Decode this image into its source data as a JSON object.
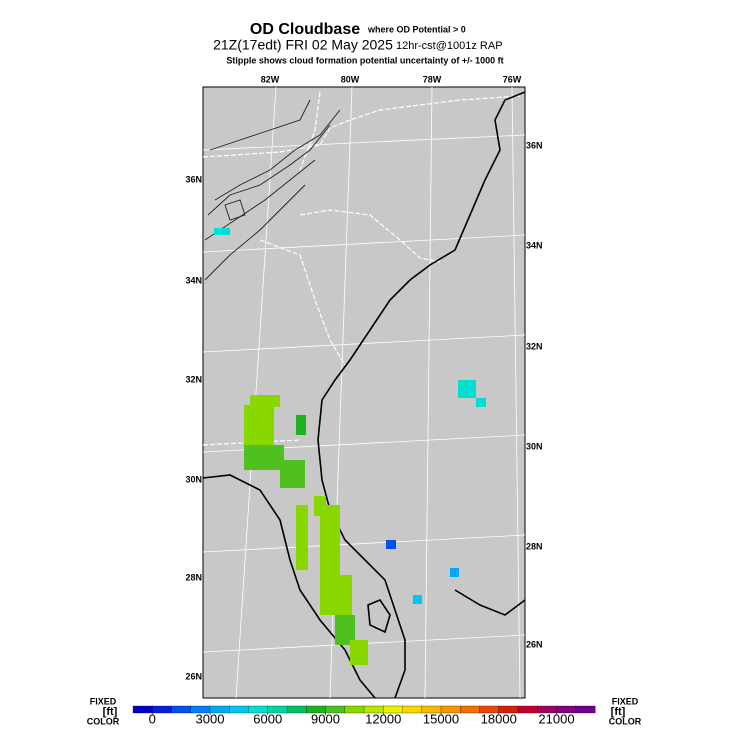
{
  "header": {
    "title": "OD Cloudbase",
    "title_note": "where OD Potential > 0",
    "subtitle": "21Z(17edt) FRI 02 May 2025",
    "subtitle_note": "12hr-cst@1001z RAP",
    "stipple_note": "Stipple shows cloud formation potential uncertainty of +/-  1000 ft"
  },
  "map": {
    "lon_labels": [
      "82W",
      "80W",
      "78W",
      "76W"
    ],
    "lat_labels_left": [
      "36N",
      "34N",
      "32N",
      "30N",
      "28N",
      "26N"
    ],
    "lat_labels_right": [
      "36N",
      "34N",
      "32N",
      "30N",
      "28N",
      "26N"
    ]
  },
  "colorbar": {
    "left_label": [
      "FIXED",
      "[ft]",
      "COLOR"
    ],
    "right_label": [
      "FIXED",
      "[ft]",
      "COLOR"
    ],
    "lim": [
      -1000,
      23000
    ],
    "ticks": [
      0,
      3000,
      6000,
      9000,
      12000,
      15000,
      18000,
      21000
    ],
    "colors": [
      "#0000c8",
      "#0020e0",
      "#0050f0",
      "#0080f8",
      "#00a8f8",
      "#00c8f0",
      "#00e0d0",
      "#00d8a0",
      "#00c060",
      "#20b020",
      "#50c020",
      "#88d800",
      "#b8e800",
      "#e8f000",
      "#f8d800",
      "#f8b800",
      "#f89800",
      "#f07000",
      "#e84800",
      "#d82000",
      "#c00030",
      "#a00060",
      "#880080",
      "#700090"
    ]
  }
}
